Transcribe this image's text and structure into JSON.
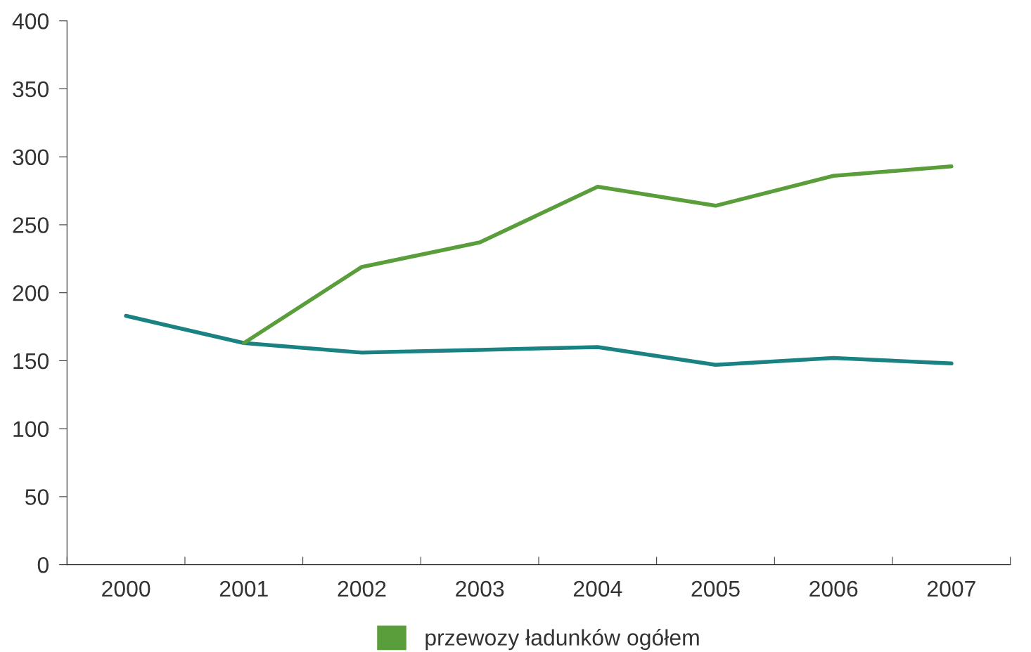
{
  "chart_data": {
    "type": "line",
    "categories": [
      "2000",
      "2001",
      "2002",
      "2003",
      "2004",
      "2005",
      "2006",
      "2007"
    ],
    "series": [
      {
        "color": "#1a8282",
        "values": [
          183,
          163,
          156,
          158,
          160,
          147,
          152,
          148
        ]
      },
      {
        "name": "przewozy ładunków ogółem",
        "color": "#5a9e3c",
        "values": [
          null,
          163,
          219,
          237,
          278,
          264,
          286,
          293
        ]
      }
    ],
    "ylim": [
      0,
      400
    ],
    "yticks": [
      0,
      50,
      100,
      150,
      200,
      250,
      300,
      350,
      400
    ],
    "grid": false,
    "legend": "bottom",
    "marker": "none",
    "line_style": "solid"
  }
}
